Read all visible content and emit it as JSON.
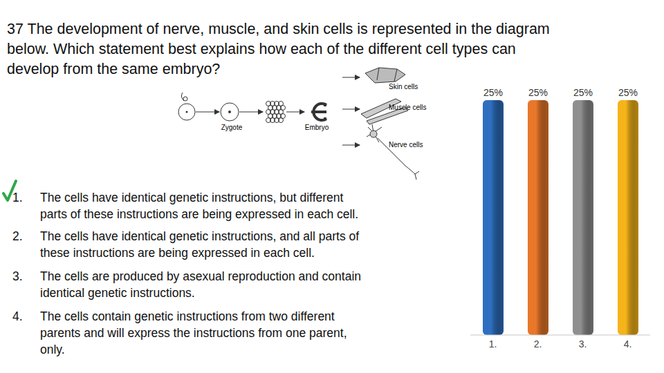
{
  "question": [
    "37 The development of nerve, muscle, and skin cells is represented in the diagram",
    "below. Which statement best explains how each of the different cell types can",
    "develop from the same embryo?"
  ],
  "diagram": {
    "stages": [
      "Zygote",
      "Embryo"
    ],
    "cells": [
      "Skin cells",
      "Muscle cells",
      "Nerve cells"
    ]
  },
  "choices": [
    {
      "number": "1.",
      "lines": [
        "The cells have identical genetic instructions, but different",
        "parts of these instructions are being expressed in each cell."
      ]
    },
    {
      "number": "2.",
      "lines": [
        "The cells have identical genetic instructions, and all parts of",
        "these instructions are being expressed in each cell."
      ]
    },
    {
      "number": "3.",
      "lines": [
        "The cells are produced by asexual reproduction and contain",
        "identical genetic instructions."
      ]
    },
    {
      "number": "4.",
      "lines": [
        "The cells contain genetic instructions from two different",
        "parents and will express the instructions from one parent,",
        "only."
      ]
    }
  ],
  "correct": 1,
  "chart_data": {
    "type": "bar",
    "categories": [
      "1.",
      "2.",
      "3.",
      "4."
    ],
    "values": [
      25,
      25,
      25,
      25
    ],
    "value_labels": [
      "25%",
      "25%",
      "25%",
      "25%"
    ],
    "data_labels": true,
    "colors": [
      "#2e6fc0",
      "#e8772a",
      "#8f8f8f",
      "#f5b41a"
    ],
    "ylim": [
      0,
      25
    ],
    "tick_labels": "x"
  }
}
